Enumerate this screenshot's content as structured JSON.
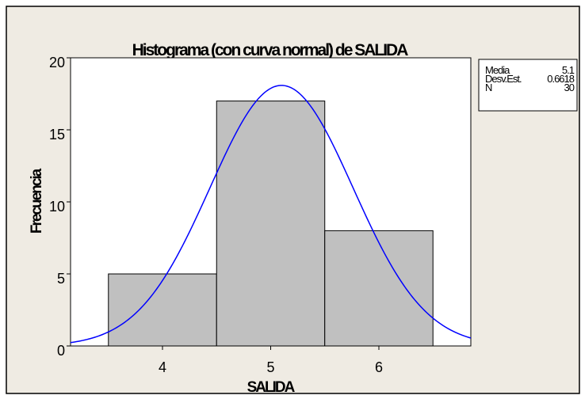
{
  "chart_data": {
    "type": "bar",
    "title": "Histograma (con curva normal) de SALIDA",
    "xlabel": "SALIDA",
    "ylabel": "Frecuencia",
    "xlim": [
      3.15,
      6.85
    ],
    "ylim": [
      0,
      20
    ],
    "x_ticks": [
      4,
      5,
      6
    ],
    "y_ticks": [
      0,
      5,
      10,
      15,
      20
    ],
    "bins": [
      {
        "from": 3.5,
        "to": 4.5,
        "value": 5
      },
      {
        "from": 4.5,
        "to": 5.5,
        "value": 17
      },
      {
        "from": 5.5,
        "to": 6.5,
        "value": 8
      }
    ],
    "normal_curve": {
      "mean": 5.1,
      "std": 0.6618,
      "n": 30,
      "bin_width": 1
    },
    "stats": [
      {
        "label": "Media",
        "value": "5.1"
      },
      {
        "label": "Desv.Est.",
        "value": "0.6618"
      },
      {
        "label": "N",
        "value": "30"
      }
    ],
    "colors": {
      "background": "#efebe3",
      "plot_area": "#ffffff",
      "bar_fill": "#c0c0c0",
      "bar_stroke": "#000000",
      "curve": "#0000ff"
    }
  }
}
